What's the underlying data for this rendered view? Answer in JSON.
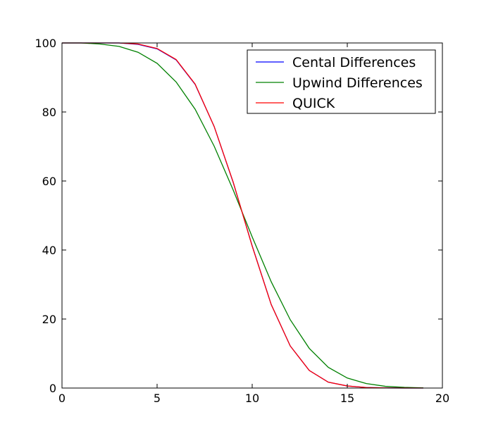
{
  "chart_data": {
    "type": "line",
    "title": "",
    "xlabel": "",
    "ylabel": "",
    "xlim": [
      0,
      20
    ],
    "ylim": [
      0,
      100
    ],
    "xticks": [
      0,
      5,
      10,
      15,
      20
    ],
    "yticks": [
      0,
      20,
      40,
      60,
      80,
      100
    ],
    "grid": false,
    "legend_position": "top-right",
    "x": [
      0,
      1,
      2,
      3,
      4,
      5,
      6,
      7,
      8,
      9,
      10,
      11,
      12,
      13,
      14,
      15,
      16,
      17,
      18,
      19
    ],
    "series": [
      {
        "name": "Cental Differences",
        "color": "#0000ff",
        "values": [
          100,
          100,
          100,
          100,
          99.6,
          98.3,
          95.1,
          88,
          75.8,
          59.6,
          41.2,
          24.2,
          12.2,
          5.1,
          1.7,
          0.6,
          0.15,
          0.04,
          0.01,
          0
        ]
      },
      {
        "name": "Upwind Differences",
        "color": "#008000",
        "values": [
          100,
          100,
          99.7,
          99,
          97.3,
          94.1,
          88.7,
          80.8,
          70.1,
          57.4,
          43.8,
          30.8,
          19.8,
          11.5,
          6,
          2.9,
          1.3,
          0.5,
          0.2,
          0.05
        ]
      },
      {
        "name": "QUICK",
        "color": "#ff0000",
        "values": [
          100,
          100,
          100,
          100,
          99.7,
          98.4,
          95.2,
          88.1,
          75.8,
          59.7,
          41.1,
          24.2,
          12.2,
          5.1,
          1.7,
          0.6,
          0.15,
          0.04,
          0.01,
          0
        ]
      }
    ]
  }
}
